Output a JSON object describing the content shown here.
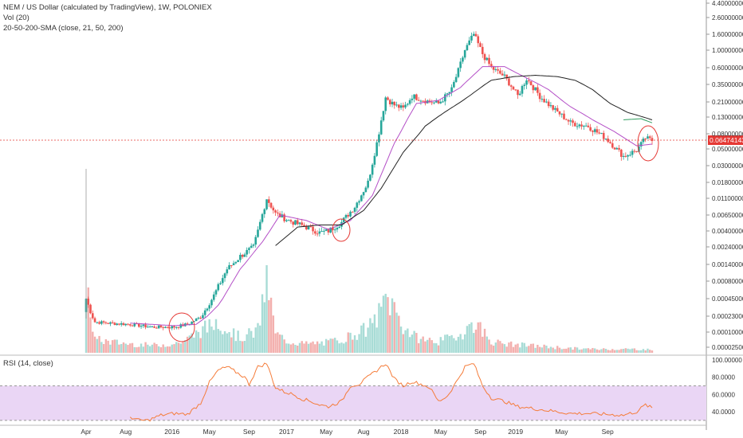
{
  "header": {
    "title_line": "NEM / US Dollar (calculated by TradingView), 1W, POLONIEX",
    "vol_line": "Vol (20)",
    "sma_line": "20-50-200-SMA (close, 21, 50, 200)"
  },
  "rsi": {
    "label": "RSI (14, close)",
    "ticks": [
      "100.00000",
      "80.0000",
      "60.0000",
      "40.0000"
    ],
    "band": [
      30,
      70
    ]
  },
  "colors": {
    "up": "#26a69a",
    "down": "#ef5350",
    "sma21": "#b44fc7",
    "sma50": "#222222",
    "sma200": "#2e9c5e",
    "rsi_line": "#f57c3a",
    "rsi_band": "#ead6f5",
    "price_line": "#e53935",
    "annotation": "#e53935"
  },
  "chart_data": {
    "type": "candlestick",
    "price_tag": "0.06474143",
    "y_axis_scale": "log",
    "y_ticks": [
      "4.40000000",
      "2.60000000",
      "1.60000000",
      "1.00000000",
      "0.60000000",
      "0.35000000",
      "0.21000000",
      "0.13000000",
      "0.08000000",
      "0.05000000",
      "0.03000000",
      "0.01800000",
      "0.01100000",
      "0.00650000",
      "0.00400000",
      "0.00240000",
      "0.00140000",
      "0.00080000",
      "0.00045000",
      "0.00023000",
      "0.00010000",
      "0.00002500"
    ],
    "x_labels": [
      "Apr",
      "Aug",
      "2016",
      "May",
      "Sep",
      "2017",
      "May",
      "Aug",
      "2018",
      "May",
      "Sep",
      "2019",
      "May",
      "Sep"
    ],
    "price_anchors": [
      [
        0,
        0.00045
      ],
      [
        4,
        0.00017
      ],
      [
        10,
        0.00016
      ],
      [
        20,
        0.00015
      ],
      [
        30,
        0.00013
      ],
      [
        40,
        0.00013
      ],
      [
        46,
        0.00015
      ],
      [
        52,
        0.00022
      ],
      [
        58,
        0.0005
      ],
      [
        64,
        0.0012
      ],
      [
        70,
        0.0018
      ],
      [
        76,
        0.0024
      ],
      [
        82,
        0.011
      ],
      [
        86,
        0.0068
      ],
      [
        92,
        0.0055
      ],
      [
        100,
        0.0045
      ],
      [
        106,
        0.0038
      ],
      [
        110,
        0.004
      ],
      [
        116,
        0.0052
      ],
      [
        122,
        0.0085
      ],
      [
        128,
        0.018
      ],
      [
        132,
        0.06
      ],
      [
        136,
        0.24
      ],
      [
        140,
        0.19
      ],
      [
        144,
        0.17
      ],
      [
        148,
        0.25
      ],
      [
        152,
        0.23
      ],
      [
        156,
        0.21
      ],
      [
        160,
        0.2
      ],
      [
        166,
        0.3
      ],
      [
        172,
        1.0
      ],
      [
        176,
        1.6
      ],
      [
        180,
        0.9
      ],
      [
        184,
        0.6
      ],
      [
        190,
        0.45
      ],
      [
        196,
        0.25
      ],
      [
        200,
        0.42
      ],
      [
        206,
        0.25
      ],
      [
        212,
        0.17
      ],
      [
        220,
        0.11
      ],
      [
        228,
        0.1
      ],
      [
        236,
        0.07
      ],
      [
        244,
        0.04
      ],
      [
        250,
        0.048
      ],
      [
        254,
        0.07
      ],
      [
        257,
        0.065
      ]
    ],
    "sma21_anchors": [
      [
        20,
        0.00016
      ],
      [
        40,
        0.00014
      ],
      [
        50,
        0.00015
      ],
      [
        60,
        0.00035
      ],
      [
        70,
        0.0012
      ],
      [
        80,
        0.0028
      ],
      [
        88,
        0.0065
      ],
      [
        100,
        0.0055
      ],
      [
        110,
        0.0042
      ],
      [
        120,
        0.0055
      ],
      [
        130,
        0.012
      ],
      [
        140,
        0.06
      ],
      [
        150,
        0.2
      ],
      [
        160,
        0.22
      ],
      [
        170,
        0.32
      ],
      [
        180,
        0.62
      ],
      [
        190,
        0.62
      ],
      [
        200,
        0.43
      ],
      [
        210,
        0.3
      ],
      [
        220,
        0.18
      ],
      [
        230,
        0.12
      ],
      [
        240,
        0.085
      ],
      [
        250,
        0.055
      ],
      [
        257,
        0.058
      ]
    ],
    "sma50_anchors": [
      [
        86,
        0.0025
      ],
      [
        96,
        0.0045
      ],
      [
        106,
        0.0048
      ],
      [
        116,
        0.0048
      ],
      [
        126,
        0.0075
      ],
      [
        134,
        0.015
      ],
      [
        144,
        0.045
      ],
      [
        154,
        0.1
      ],
      [
        164,
        0.16
      ],
      [
        174,
        0.25
      ],
      [
        184,
        0.4
      ],
      [
        194,
        0.45
      ],
      [
        204,
        0.47
      ],
      [
        214,
        0.45
      ],
      [
        222,
        0.4
      ],
      [
        230,
        0.3
      ],
      [
        238,
        0.2
      ],
      [
        246,
        0.15
      ],
      [
        257,
        0.12
      ]
    ],
    "sma200_anchors": [
      [
        244,
        0.12
      ],
      [
        252,
        0.124
      ],
      [
        257,
        0.11
      ]
    ],
    "rsi_anchors": [
      [
        20,
        34
      ],
      [
        24,
        30
      ],
      [
        28,
        30
      ],
      [
        34,
        36
      ],
      [
        40,
        38
      ],
      [
        46,
        37
      ],
      [
        52,
        50
      ],
      [
        56,
        74
      ],
      [
        60,
        88
      ],
      [
        64,
        92
      ],
      [
        68,
        86
      ],
      [
        72,
        80
      ],
      [
        74,
        72
      ],
      [
        78,
        92
      ],
      [
        82,
        96
      ],
      [
        86,
        68
      ],
      [
        90,
        63
      ],
      [
        94,
        60
      ],
      [
        98,
        55
      ],
      [
        102,
        52
      ],
      [
        106,
        48
      ],
      [
        110,
        46
      ],
      [
        116,
        52
      ],
      [
        120,
        70
      ],
      [
        124,
        72
      ],
      [
        128,
        80
      ],
      [
        132,
        88
      ],
      [
        136,
        96
      ],
      [
        140,
        78
      ],
      [
        144,
        70
      ],
      [
        148,
        75
      ],
      [
        152,
        72
      ],
      [
        156,
        68
      ],
      [
        160,
        52
      ],
      [
        164,
        58
      ],
      [
        168,
        74
      ],
      [
        172,
        92
      ],
      [
        176,
        96
      ],
      [
        180,
        70
      ],
      [
        184,
        56
      ],
      [
        190,
        52
      ],
      [
        196,
        46
      ],
      [
        202,
        44
      ],
      [
        208,
        42
      ],
      [
        214,
        40
      ],
      [
        220,
        38
      ],
      [
        228,
        38
      ],
      [
        236,
        37
      ],
      [
        244,
        36
      ],
      [
        250,
        40
      ],
      [
        254,
        48
      ],
      [
        257,
        44
      ]
    ],
    "volume_anchors": [
      [
        0,
        0.95
      ],
      [
        4,
        0.18
      ],
      [
        10,
        0.15
      ],
      [
        20,
        0.12
      ],
      [
        30,
        0.1
      ],
      [
        40,
        0.12
      ],
      [
        46,
        0.18
      ],
      [
        52,
        0.3
      ],
      [
        56,
        0.35
      ],
      [
        60,
        0.45
      ],
      [
        64,
        0.32
      ],
      [
        70,
        0.2
      ],
      [
        78,
        0.3
      ],
      [
        82,
        1.0
      ],
      [
        86,
        0.25
      ],
      [
        92,
        0.15
      ],
      [
        100,
        0.12
      ],
      [
        110,
        0.14
      ],
      [
        118,
        0.2
      ],
      [
        124,
        0.28
      ],
      [
        128,
        0.32
      ],
      [
        134,
        0.55
      ],
      [
        136,
        0.75
      ],
      [
        140,
        0.6
      ],
      [
        144,
        0.35
      ],
      [
        150,
        0.2
      ],
      [
        160,
        0.15
      ],
      [
        170,
        0.25
      ],
      [
        176,
        0.4
      ],
      [
        180,
        0.3
      ],
      [
        184,
        0.15
      ],
      [
        190,
        0.12
      ],
      [
        200,
        0.1
      ],
      [
        210,
        0.08
      ],
      [
        220,
        0.06
      ],
      [
        230,
        0.05
      ],
      [
        240,
        0.05
      ],
      [
        250,
        0.05
      ],
      [
        257,
        0.04
      ]
    ],
    "weeks_per_x_label": [
      0,
      18,
      39,
      56,
      74,
      91,
      109,
      126,
      143,
      161,
      179,
      195,
      213,
      231
    ]
  }
}
